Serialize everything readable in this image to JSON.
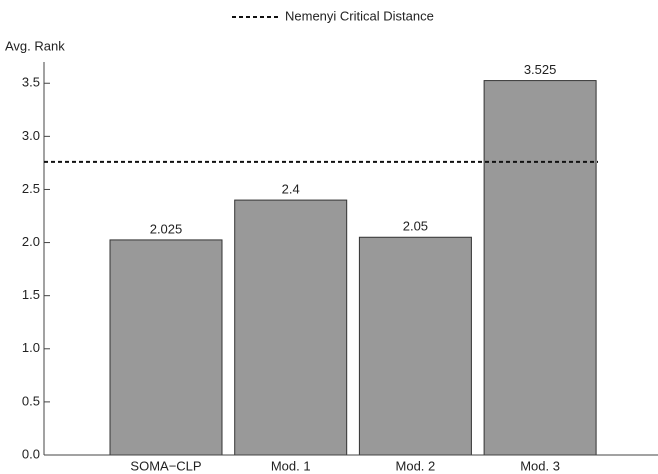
{
  "chart_data": {
    "type": "bar",
    "ylabel": "Avg. Rank",
    "categories": [
      "SOMA−CLP",
      "Mod. 1",
      "Mod. 2",
      "Mod. 3"
    ],
    "values": [
      2.025,
      2.4,
      2.05,
      3.525
    ],
    "color": "#999999",
    "ylim": [
      0,
      3.7
    ],
    "yticks": [
      {
        "value": 0,
        "label": "0.0"
      },
      0.5,
      {
        "value": 1,
        "label": "1.0"
      },
      1.5,
      {
        "value": 2,
        "label": "2.0"
      },
      2.5,
      {
        "value": 3,
        "label": "3.0"
      },
      3.5
    ],
    "reference_line": {
      "label": "Nemenyi Critical Distance",
      "value": 2.76,
      "style": "dashed"
    }
  }
}
